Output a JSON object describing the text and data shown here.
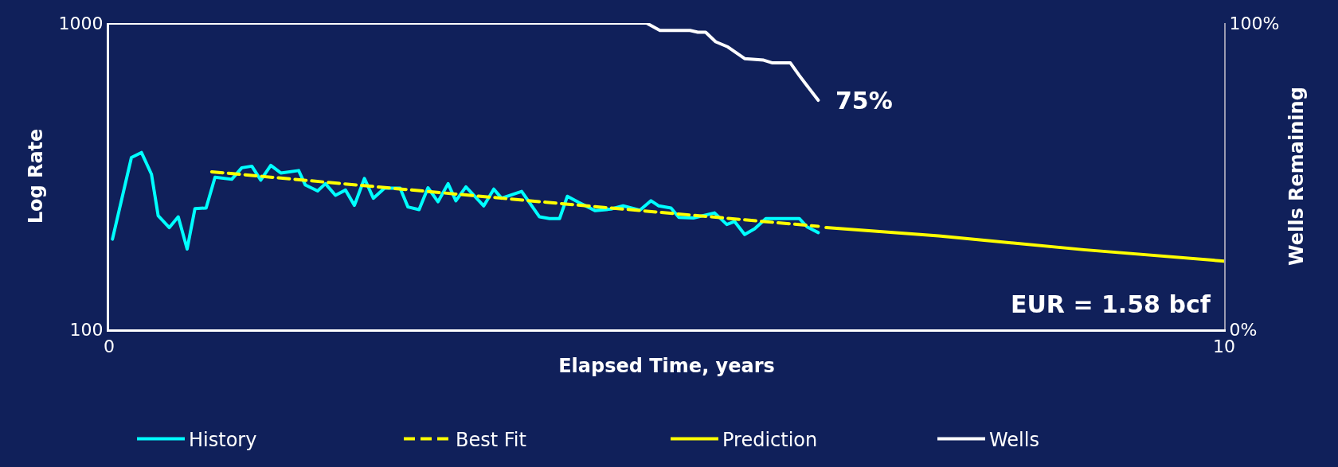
{
  "chart_data": {
    "type": "line",
    "xlabel": "Elapsed Time, years",
    "ylabel": "Log Rate",
    "y2label": "Wells Remaining",
    "log": "y",
    "legend": "bottom",
    "marker": "none",
    "xlim": [
      0,
      10
    ],
    "xticks": [
      0,
      10
    ],
    "ylim": [
      100,
      1000
    ],
    "yticks": [
      100,
      1000
    ],
    "y2lim": [
      0,
      100
    ],
    "y2ticks": [
      {
        "value": 0,
        "label": "0%"
      },
      {
        "value": 100,
        "label": "100%"
      }
    ],
    "annotations": [
      "75%",
      "EUR = 1.58 bcf"
    ],
    "series": [
      {
        "name": "History",
        "color": "#00ffff",
        "line_style": "solid",
        "x": [
          0.03,
          0.2,
          0.29,
          0.38,
          0.44,
          0.54,
          0.62,
          0.7,
          0.77,
          0.87,
          0.95,
          1.1,
          1.19,
          1.28,
          1.36,
          1.45,
          1.54,
          1.7,
          1.76,
          1.87,
          1.94,
          2.03,
          2.12,
          2.2,
          2.29,
          2.37,
          2.47,
          2.61,
          2.68,
          2.78,
          2.86,
          2.95,
          3.04,
          3.11,
          3.2,
          3.36,
          3.45,
          3.52,
          3.7,
          3.86,
          3.95,
          4.04,
          4.11,
          4.21,
          4.36,
          4.5,
          4.61,
          4.76,
          4.86,
          4.93,
          5.04,
          5.11,
          5.24,
          5.43,
          5.54,
          5.61,
          5.7,
          5.79,
          5.89,
          6.19,
          6.26,
          6.36
        ],
        "values": [
          197,
          364,
          378,
          321,
          235,
          215,
          233,
          183,
          248,
          249,
          314,
          309,
          337,
          341,
          307,
          343,
          324,
          330,
          296,
          283,
          299,
          274,
          285,
          254,
          311,
          268,
          289,
          289,
          251,
          246,
          290,
          261,
          299,
          263,
          292,
          253,
          287,
          268,
          282,
          233,
          230,
          230,
          272,
          260,
          244,
          247,
          253,
          245,
          263,
          253,
          249,
          232,
          231,
          240,
          220,
          225,
          204,
          213,
          230,
          230,
          216,
          207
        ]
      },
      {
        "name": "Best Fit",
        "color": "#ffff00",
        "line_style": "dashed",
        "x": [
          0.92,
          3.92,
          6.36
        ],
        "values": [
          327,
          260,
          217
        ]
      },
      {
        "name": "Prediction",
        "color": "#ffff00",
        "line_style": "solid",
        "x": [
          6.43,
          7.44,
          8.74,
          10
        ],
        "values": [
          215,
          202,
          182,
          167
        ]
      },
      {
        "name": "Wells",
        "color": "#ffffff",
        "line_style": "solid",
        "axis": "y2",
        "x": [
          0,
          4.82,
          4.94,
          5.21,
          5.28,
          5.35,
          5.44,
          5.55,
          5.7,
          5.87,
          5.95,
          6.11,
          6.19,
          6.25,
          6.36
        ],
        "values": [
          100,
          100,
          97.6,
          97.6,
          97,
          97,
          93.9,
          92.2,
          88.4,
          87.9,
          87,
          87,
          82.9,
          80,
          74.8
        ]
      }
    ]
  }
}
